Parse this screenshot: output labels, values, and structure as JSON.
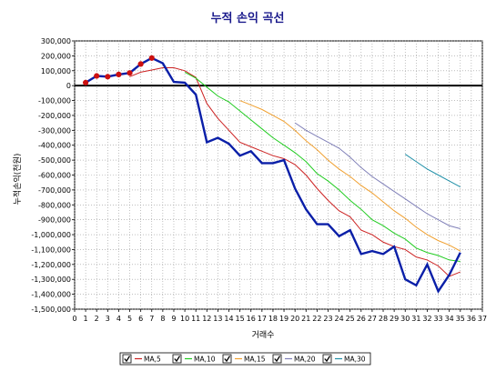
{
  "chart_data": {
    "type": "line",
    "title": "누적 손익 곡선",
    "xlabel": "거래수",
    "ylabel": "누적손익(천원)",
    "xlim": [
      0,
      37
    ],
    "ylim": [
      -1500000,
      300000
    ],
    "xticks": [
      0,
      1,
      2,
      3,
      4,
      5,
      6,
      7,
      8,
      9,
      10,
      11,
      12,
      13,
      14,
      15,
      16,
      17,
      18,
      19,
      20,
      21,
      22,
      23,
      24,
      25,
      26,
      27,
      28,
      29,
      30,
      31,
      32,
      33,
      34,
      35,
      36,
      37
    ],
    "yticks": [
      300000,
      200000,
      100000,
      0,
      -100000,
      -200000,
      -300000,
      -400000,
      -500000,
      -600000,
      -700000,
      -800000,
      -900000,
      -1000000,
      -1100000,
      -1200000,
      -1300000,
      -1400000,
      -1500000
    ],
    "ytick_labels": [
      "300,000",
      "200,000",
      "100,000",
      "0",
      "-100,000",
      "-200,000",
      "-300,000",
      "-400,000",
      "-500,000",
      "-600,000",
      "-700,000",
      "-800,000",
      "-900,000",
      "-1,000,000",
      "-1,100,000",
      "-1,200,000",
      "-1,300,000",
      "-1,400,000",
      "-1,500,000"
    ],
    "grid": true,
    "legend": "bottom",
    "main_series": {
      "color": "#0a1fa8",
      "x": [
        1,
        2,
        3,
        4,
        5,
        6,
        7,
        8,
        9,
        10,
        11,
        12,
        13,
        14,
        15,
        16,
        17,
        18,
        19,
        20,
        21,
        22,
        23,
        24,
        25,
        26,
        27,
        28,
        29,
        30,
        31,
        32,
        33,
        34,
        35
      ],
      "y": [
        20000,
        65000,
        60000,
        75000,
        85000,
        145000,
        185000,
        150000,
        25000,
        20000,
        -60000,
        -380000,
        -350000,
        -390000,
        -470000,
        -440000,
        -520000,
        -520000,
        -500000,
        -690000,
        -830000,
        -930000,
        -930000,
        -1010000,
        -970000,
        -1130000,
        -1110000,
        -1130000,
        -1080000,
        -1300000,
        -1340000,
        -1200000,
        -1380000,
        -1270000,
        -1120000
      ],
      "markers_until": 7
    },
    "series": [
      {
        "name": "MA,5",
        "color": "#cc2222",
        "x": [
          5,
          6,
          7,
          8,
          9,
          10,
          11,
          12,
          13,
          14,
          15,
          16,
          17,
          18,
          19,
          20,
          21,
          22,
          23,
          24,
          25,
          26,
          27,
          28,
          29,
          30,
          31,
          32,
          33,
          34,
          35
        ],
        "y": [
          60000,
          90000,
          105000,
          120000,
          120000,
          100000,
          55000,
          -120000,
          -220000,
          -300000,
          -380000,
          -410000,
          -440000,
          -470000,
          -490000,
          -530000,
          -600000,
          -690000,
          -770000,
          -840000,
          -880000,
          -970000,
          -1000000,
          -1050000,
          -1080000,
          -1100000,
          -1150000,
          -1170000,
          -1210000,
          -1280000,
          -1250000
        ]
      },
      {
        "name": "MA,10",
        "color": "#22cc22",
        "x": [
          10,
          11,
          12,
          13,
          14,
          15,
          16,
          17,
          18,
          19,
          20,
          21,
          22,
          23,
          24,
          25,
          26,
          27,
          28,
          29,
          30,
          31,
          32,
          33,
          34,
          35
        ],
        "y": [
          90000,
          50000,
          -10000,
          -70000,
          -110000,
          -170000,
          -230000,
          -290000,
          -350000,
          -400000,
          -450000,
          -510000,
          -590000,
          -640000,
          -700000,
          -770000,
          -830000,
          -900000,
          -940000,
          -990000,
          -1030000,
          -1090000,
          -1120000,
          -1140000,
          -1170000,
          -1180000
        ]
      },
      {
        "name": "MA,15",
        "color": "#f0a030",
        "x": [
          15,
          16,
          17,
          18,
          19,
          20,
          21,
          22,
          23,
          24,
          25,
          26,
          27,
          28,
          29,
          30,
          31,
          32,
          33,
          34,
          35
        ],
        "y": [
          -100000,
          -130000,
          -160000,
          -200000,
          -240000,
          -300000,
          -370000,
          -430000,
          -500000,
          -560000,
          -610000,
          -670000,
          -720000,
          -780000,
          -840000,
          -890000,
          -950000,
          -1000000,
          -1040000,
          -1070000,
          -1110000
        ]
      },
      {
        "name": "MA,20",
        "color": "#8080b8",
        "x": [
          20,
          21,
          22,
          23,
          24,
          25,
          26,
          27,
          28,
          29,
          30,
          31,
          32,
          33,
          34,
          35
        ],
        "y": [
          -250000,
          -300000,
          -340000,
          -380000,
          -420000,
          -480000,
          -550000,
          -610000,
          -660000,
          -710000,
          -760000,
          -810000,
          -860000,
          -900000,
          -940000,
          -960000
        ]
      },
      {
        "name": "MA,30",
        "color": "#2090a8",
        "x": [
          30,
          31,
          32,
          33,
          34,
          35
        ],
        "y": [
          -460000,
          -510000,
          -560000,
          -600000,
          -640000,
          -680000
        ]
      }
    ]
  }
}
